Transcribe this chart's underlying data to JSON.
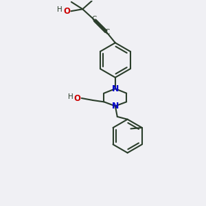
{
  "bg_color": "#f0f0f4",
  "bond_color": "#2a3d2a",
  "nitrogen_color": "#0000cc",
  "oxygen_color": "#cc0000",
  "lw": 1.5,
  "figsize": [
    3.0,
    3.0
  ],
  "dpi": 100,
  "xlim": [
    0,
    10
  ],
  "ylim": [
    0,
    10
  ]
}
